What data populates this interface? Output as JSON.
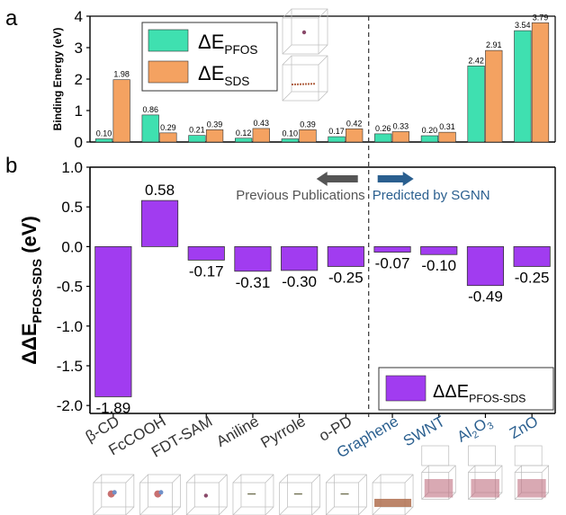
{
  "colors": {
    "pfos": "#3fe0b0",
    "sds": "#f4a261",
    "ddE": "#a13cf0",
    "axis": "#000000",
    "previous": "#555555",
    "predicted": "#2a5f8f",
    "arrow_prev": "#555555",
    "arrow_pred": "#2a5f8f"
  },
  "categories": [
    "β-CD",
    "FcCOOH",
    "FDT-SAM",
    "Aniline",
    "Pyrrole",
    "o-PD",
    "Graphene",
    "SWNT",
    "Al2O3",
    "ZnO"
  ],
  "category_groups": [
    "previous",
    "previous",
    "previous",
    "previous",
    "previous",
    "previous",
    "predicted",
    "predicted",
    "predicted",
    "predicted"
  ],
  "chart_data": [
    {
      "panel": "a",
      "type": "bar",
      "ylabel": "Binding Energy (eV)",
      "ylim": [
        0,
        4
      ],
      "yticks": [
        0,
        1,
        2,
        3,
        4
      ],
      "series": [
        {
          "name": "ΔE_PFOS",
          "values": [
            0.1,
            0.86,
            0.21,
            0.12,
            0.1,
            0.17,
            0.26,
            0.2,
            2.42,
            3.54
          ],
          "labels": [
            "0.10",
            "0.86",
            "0.21",
            "0.12",
            "0.10",
            "0.17",
            "0.26",
            "0.20",
            "2.42",
            "3.54"
          ]
        },
        {
          "name": "ΔE_SDS",
          "values": [
            1.98,
            0.29,
            0.39,
            0.43,
            0.39,
            0.42,
            0.33,
            0.31,
            2.91,
            3.79
          ],
          "labels": [
            "1.98",
            "0.29",
            "0.39",
            "0.43",
            "0.39",
            "0.42",
            "0.33",
            "0.31",
            "2.91",
            "3.79"
          ]
        }
      ],
      "legend": [
        {
          "base": "ΔE",
          "sub": "PFOS"
        },
        {
          "base": "ΔE",
          "sub": "SDS"
        }
      ],
      "legend_position": "top-left"
    },
    {
      "panel": "b",
      "type": "bar",
      "ylabel": {
        "base": "ΔΔE",
        "sub": "PFOS-SDS",
        "suffix": " (eV)"
      },
      "ylim": [
        -2.1,
        1.0
      ],
      "yticks": [
        -2.0,
        -1.5,
        -1.0,
        -0.5,
        0.0,
        0.5,
        1.0
      ],
      "ytick_labels": [
        "-2.0",
        "-1.5",
        "-1.0",
        "-0.5",
        "0.0",
        "0.5",
        "1.0"
      ],
      "values": [
        -1.89,
        0.58,
        -0.17,
        -0.31,
        -0.3,
        -0.25,
        -0.07,
        -0.1,
        -0.49,
        -0.25
      ],
      "labels": [
        "-1.89",
        "0.58",
        "-0.17",
        "-0.31",
        "-0.30",
        "-0.25",
        "-0.07",
        "-0.10",
        "-0.49",
        "-0.25"
      ],
      "legend": {
        "base": "ΔΔE",
        "sub": "PFOS-SDS"
      },
      "legend_position": "bottom-right",
      "annotations": {
        "previous": "Previous Publications",
        "predicted": "Predicted by SGNN"
      }
    }
  ],
  "panel_labels": {
    "a": "a",
    "b": "b"
  },
  "xtick_labels": [
    {
      "text": "β-CD"
    },
    {
      "text": "FcCOOH"
    },
    {
      "text": "FDT-SAM"
    },
    {
      "text": "Aniline"
    },
    {
      "text": "Pyrrole"
    },
    {
      "text": "o-PD"
    },
    {
      "text": "Graphene"
    },
    {
      "text": "SWNT"
    },
    {
      "base": "Al",
      "sub1": "2",
      "mid": "O",
      "sub2": "3"
    },
    {
      "text": "ZnO"
    }
  ]
}
